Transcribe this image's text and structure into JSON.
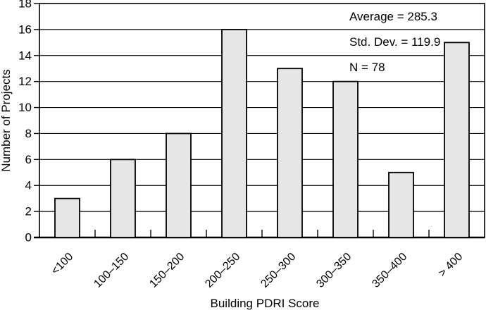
{
  "chart_data": {
    "type": "bar",
    "categories": [
      "<100",
      "100–150",
      "150–200",
      "200–250",
      "250–300",
      "300–350",
      "350–400",
      "> 400"
    ],
    "values": [
      3,
      6,
      8,
      16,
      13,
      12,
      5,
      15
    ],
    "xlabel": "Building PDRI Score",
    "ylabel": "Number of Projects",
    "ylim": [
      0,
      18
    ],
    "ytick_step": 2,
    "grid": "horizontal",
    "legend": "none",
    "annotations": [
      "Average = 285.3",
      "Std. Dev. = 119.9",
      "N = 78"
    ],
    "stats": {
      "average": 285.3,
      "std_dev": 119.9,
      "n": 78
    },
    "colors": {
      "bar_fill": "#e6e6e6",
      "bar_stroke": "#000000",
      "axis": "#000000",
      "grid_line": "#000000",
      "background": "#ffffff"
    }
  }
}
